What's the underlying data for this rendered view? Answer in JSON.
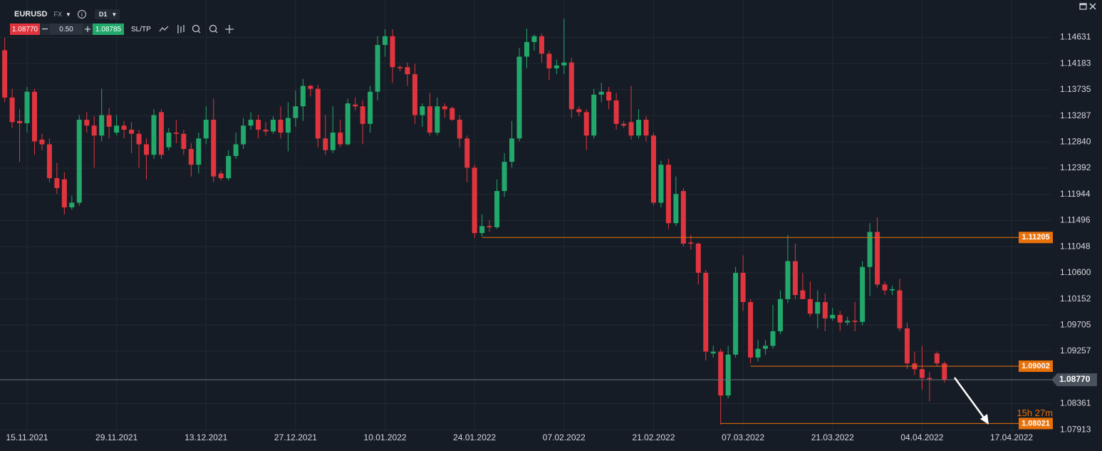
{
  "toolbar": {
    "symbol": "EURUSD",
    "market": "FX",
    "timeframe": "D1",
    "sell": "1.08770",
    "quantity": "0.50",
    "buy": "1.08785",
    "sltp": "SL/TP"
  },
  "chart_data": {
    "type": "candlestick",
    "candles": [
      [
        1.1441,
        1.1462,
        1.1352,
        1.136
      ],
      [
        1.136,
        1.1375,
        1.1308,
        1.1318
      ],
      [
        1.132,
        1.134,
        1.125,
        1.1316
      ],
      [
        1.1316,
        1.1378,
        1.13,
        1.137
      ],
      [
        1.137,
        1.1375,
        1.1262,
        1.1285
      ],
      [
        1.1288,
        1.1298,
        1.127,
        1.128
      ],
      [
        1.128,
        1.129,
        1.1215,
        1.1222
      ],
      [
        1.1222,
        1.1248,
        1.1195,
        1.1205
      ],
      [
        1.122,
        1.1232,
        1.116,
        1.1172
      ],
      [
        1.1172,
        1.1192,
        1.1168,
        1.118
      ],
      [
        1.118,
        1.133,
        1.1175,
        1.1322
      ],
      [
        1.1322,
        1.1335,
        1.13,
        1.1312
      ],
      [
        1.1312,
        1.1328,
        1.124,
        1.1295
      ],
      [
        1.1295,
        1.1375,
        1.1285,
        1.133
      ],
      [
        1.133,
        1.1342,
        1.129,
        1.131
      ],
      [
        1.13,
        1.133,
        1.1295,
        1.1312
      ],
      [
        1.1312,
        1.132,
        1.129,
        1.1305
      ],
      [
        1.1305,
        1.1318,
        1.1265,
        1.1298
      ],
      [
        1.1298,
        1.1305,
        1.124,
        1.128
      ],
      [
        1.128,
        1.129,
        1.122,
        1.1262
      ],
      [
        1.1262,
        1.134,
        1.1255,
        1.133
      ],
      [
        1.1335,
        1.134,
        1.1255,
        1.1262
      ],
      [
        1.1275,
        1.1308,
        1.127,
        1.13
      ],
      [
        1.13,
        1.1322,
        1.1282,
        1.1298
      ],
      [
        1.1298,
        1.1305,
        1.1262,
        1.1272
      ],
      [
        1.1272,
        1.1282,
        1.1225,
        1.1245
      ],
      [
        1.1245,
        1.13,
        1.123,
        1.129
      ],
      [
        1.129,
        1.1345,
        1.128,
        1.1322
      ],
      [
        1.1322,
        1.1358,
        1.1215,
        1.1225
      ],
      [
        1.123,
        1.1235,
        1.1218,
        1.1222
      ],
      [
        1.1222,
        1.127,
        1.1218,
        1.126
      ],
      [
        1.126,
        1.13,
        1.1255,
        1.128
      ],
      [
        1.128,
        1.1325,
        1.1272,
        1.1312
      ],
      [
        1.1312,
        1.1335,
        1.1305,
        1.1322
      ],
      [
        1.1322,
        1.133,
        1.129,
        1.1305
      ],
      [
        1.1305,
        1.1318,
        1.1295,
        1.1302
      ],
      [
        1.1302,
        1.1328,
        1.1298,
        1.1322
      ],
      [
        1.1322,
        1.1345,
        1.129,
        1.13
      ],
      [
        1.13,
        1.1352,
        1.1268,
        1.1325
      ],
      [
        1.1325,
        1.1372,
        1.131,
        1.1345
      ],
      [
        1.1345,
        1.1392,
        1.132,
        1.138
      ],
      [
        1.138,
        1.1382,
        1.1362,
        1.1375
      ],
      [
        1.1375,
        1.1382,
        1.1275,
        1.129
      ],
      [
        1.129,
        1.133,
        1.1262,
        1.127
      ],
      [
        1.127,
        1.1345,
        1.1265,
        1.13
      ],
      [
        1.13,
        1.1322,
        1.1275,
        1.128
      ],
      [
        1.128,
        1.1358,
        1.1278,
        1.135
      ],
      [
        1.1348,
        1.136,
        1.1338,
        1.1345
      ],
      [
        1.1345,
        1.1355,
        1.128,
        1.1315
      ],
      [
        1.1315,
        1.138,
        1.13,
        1.137
      ],
      [
        1.137,
        1.1465,
        1.1355,
        1.145
      ],
      [
        1.145,
        1.1477,
        1.143,
        1.1465
      ],
      [
        1.1465,
        1.1477,
        1.1385,
        1.1412
      ],
      [
        1.1412,
        1.1415,
        1.1405,
        1.141
      ],
      [
        1.1412,
        1.142,
        1.138,
        1.14
      ],
      [
        1.14,
        1.1418,
        1.1315,
        1.133
      ],
      [
        1.133,
        1.135,
        1.131,
        1.1345
      ],
      [
        1.1345,
        1.1368,
        1.1295,
        1.13
      ],
      [
        1.13,
        1.136,
        1.1295,
        1.1345
      ],
      [
        1.1345,
        1.135,
        1.1325,
        1.134
      ],
      [
        1.1342,
        1.1345,
        1.132,
        1.1322
      ],
      [
        1.1322,
        1.133,
        1.1275,
        1.129
      ],
      [
        1.129,
        1.1295,
        1.1215,
        1.124
      ],
      [
        1.124,
        1.1245,
        1.112,
        1.1128
      ],
      [
        1.1128,
        1.116,
        1.1122,
        1.114
      ],
      [
        1.114,
        1.115,
        1.113,
        1.1138
      ],
      [
        1.1138,
        1.122,
        1.1135,
        1.12
      ],
      [
        1.12,
        1.1265,
        1.119,
        1.125
      ],
      [
        1.125,
        1.132,
        1.124,
        1.129
      ],
      [
        1.129,
        1.1445,
        1.1285,
        1.143
      ],
      [
        1.143,
        1.1478,
        1.141,
        1.1455
      ],
      [
        1.1455,
        1.1468,
        1.144,
        1.1465
      ],
      [
        1.1465,
        1.147,
        1.142,
        1.1435
      ],
      [
        1.1435,
        1.144,
        1.139,
        1.141
      ],
      [
        1.141,
        1.1425,
        1.14,
        1.1415
      ],
      [
        1.1415,
        1.1495,
        1.14,
        1.142
      ],
      [
        1.142,
        1.1428,
        1.1325,
        1.134
      ],
      [
        1.134,
        1.1345,
        1.1328,
        1.1335
      ],
      [
        1.1335,
        1.134,
        1.127,
        1.1295
      ],
      [
        1.1295,
        1.1375,
        1.129,
        1.1365
      ],
      [
        1.1365,
        1.1385,
        1.1352,
        1.137
      ],
      [
        1.137,
        1.1378,
        1.134,
        1.1355
      ],
      [
        1.1355,
        1.1368,
        1.1305,
        1.1315
      ],
      [
        1.1315,
        1.132,
        1.1308,
        1.1312
      ],
      [
        1.1318,
        1.138,
        1.1288,
        1.1295
      ],
      [
        1.1295,
        1.134,
        1.129,
        1.1322
      ],
      [
        1.1322,
        1.1328,
        1.1285,
        1.1295
      ],
      [
        1.1295,
        1.13,
        1.1175,
        1.118
      ],
      [
        1.118,
        1.1252,
        1.1172,
        1.1245
      ],
      [
        1.1245,
        1.1255,
        1.1135,
        1.1145
      ],
      [
        1.1145,
        1.1225,
        1.114,
        1.1195
      ],
      [
        1.12,
        1.1205,
        1.1105,
        1.111
      ],
      [
        1.1112,
        1.1125,
        1.11,
        1.111
      ],
      [
        1.111,
        1.1112,
        1.104,
        1.106
      ],
      [
        1.106,
        1.1065,
        1.091,
        1.0925
      ],
      [
        1.0922,
        1.0935,
        1.0915,
        1.0925
      ],
      [
        1.0925,
        1.093,
        1.08,
        1.085
      ],
      [
        1.085,
        1.0935,
        1.0845,
        1.092
      ],
      [
        1.092,
        1.107,
        1.0915,
        1.106
      ],
      [
        1.106,
        1.109,
        1.0995,
        1.101
      ],
      [
        1.101,
        1.1015,
        1.0905,
        1.0915
      ],
      [
        1.0915,
        1.0945,
        1.0908,
        1.093
      ],
      [
        1.093,
        1.0945,
        1.092,
        1.0935
      ],
      [
        1.0935,
        1.1005,
        1.093,
        1.096
      ],
      [
        1.096,
        1.103,
        1.0955,
        1.1015
      ],
      [
        1.1015,
        1.1125,
        1.1008,
        1.108
      ],
      [
        1.108,
        1.111,
        1.1015,
        1.1022
      ],
      [
        1.103,
        1.106,
        1.1015,
        1.1015
      ],
      [
        1.1015,
        1.1045,
        1.0985,
        1.099
      ],
      [
        1.099,
        1.103,
        1.0965,
        1.101
      ],
      [
        1.101,
        1.1025,
        1.096,
        1.0982
      ],
      [
        1.0982,
        1.1,
        1.0978,
        1.0988
      ],
      [
        1.0988,
        1.0995,
        1.096,
        1.0975
      ],
      [
        1.0975,
        1.0985,
        1.097,
        1.0978
      ],
      [
        1.0978,
        1.101,
        1.096,
        1.0976
      ],
      [
        1.0976,
        1.108,
        1.097,
        1.107
      ],
      [
        1.107,
        1.1145,
        1.102,
        1.113
      ],
      [
        1.113,
        1.1155,
        1.1035,
        1.104
      ],
      [
        1.104,
        1.1045,
        1.1022,
        1.103
      ],
      [
        1.103,
        1.1038,
        1.1022,
        1.1032
      ],
      [
        1.103,
        1.105,
        1.096,
        1.0965
      ],
      [
        1.0965,
        1.0975,
        1.0895,
        1.0905
      ],
      [
        1.0905,
        1.0925,
        1.0885,
        1.0895
      ],
      [
        1.0895,
        1.0935,
        1.086,
        1.088
      ],
      [
        1.088,
        1.089,
        1.084,
        1.0878
      ],
      [
        1.0922,
        1.0925,
        1.09,
        1.0905
      ],
      [
        1.0905,
        1.0908,
        1.0872,
        1.0877
      ]
    ],
    "ylim": [
      1.0755,
      1.1527
    ],
    "yticks": [
      1.14631,
      1.14183,
      1.13735,
      1.13287,
      {
        "value": 1.1284,
        "label": "1.12840"
      },
      1.12392,
      1.11944,
      1.11496,
      1.11048,
      {
        "value": 1.106,
        "label": "1.10600"
      },
      1.10152,
      1.09705,
      1.09257,
      1.08361,
      1.07913
    ],
    "xlim": [
      -0.63,
      140.25
    ],
    "xticks": [
      {
        "value": 3,
        "label": "15.11.2021"
      },
      {
        "value": 15,
        "label": "29.11.2021"
      },
      {
        "value": 27,
        "label": "13.12.2021"
      },
      {
        "value": 39,
        "label": "27.12.2021"
      },
      {
        "value": 51,
        "label": "10.01.2022"
      },
      {
        "value": 63,
        "label": "24.01.2022"
      },
      {
        "value": 75,
        "label": "07.02.2022"
      },
      {
        "value": 87,
        "label": "21.02.2022"
      },
      {
        "value": 99,
        "label": "07.03.2022"
      },
      {
        "value": 111,
        "label": "21.03.2022"
      },
      {
        "value": 123,
        "label": "04.04.2022"
      },
      {
        "value": 135,
        "label": "17.04.2022"
      }
    ],
    "up_color": "#22a86a",
    "down_color": "#e0353f",
    "level_color": "#e8710a",
    "grid": true,
    "levels": [
      {
        "value": 1.11205,
        "from": 64
      },
      {
        "value": 1.09002,
        "from": 100
      },
      {
        "value": 1.08021,
        "from": 96
      }
    ],
    "price": {
      "value": 1.0877,
      "label": "1.08770"
    },
    "countdown": "15h 27m"
  }
}
